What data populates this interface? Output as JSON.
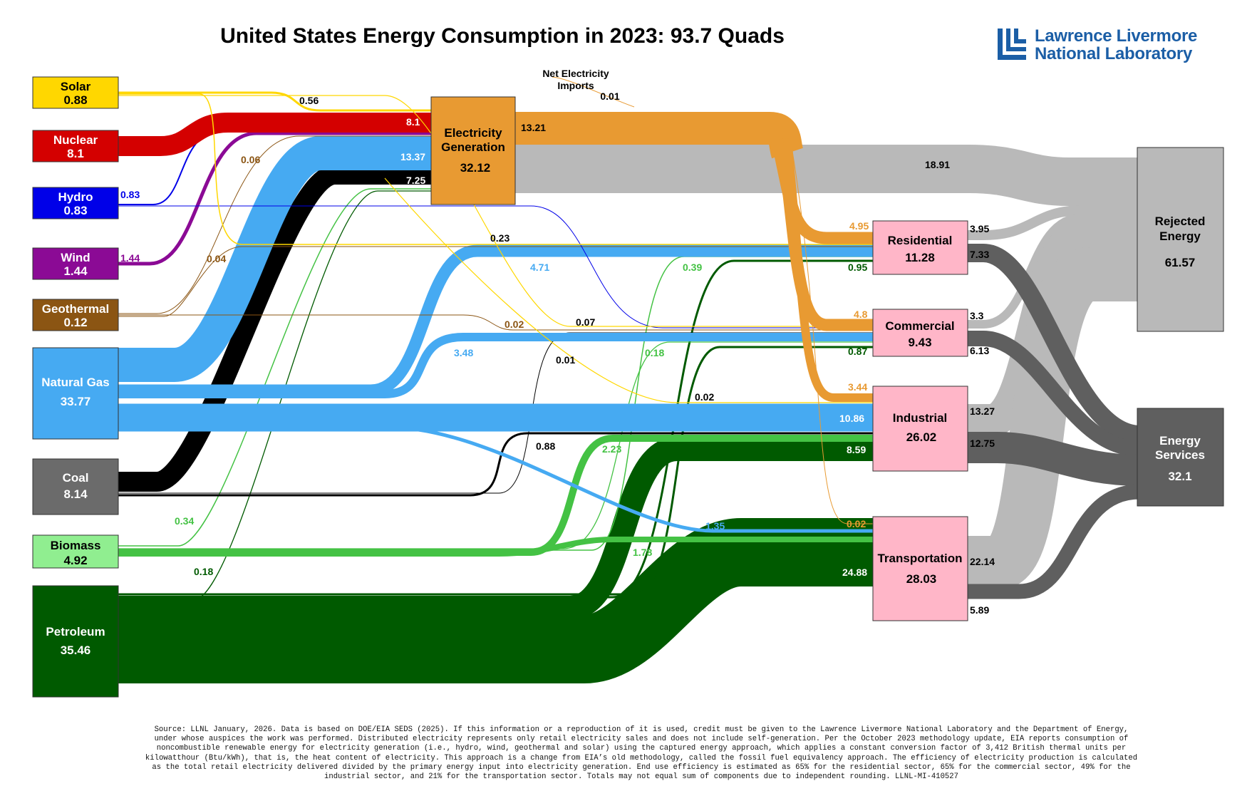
{
  "title": "United States Energy Consumption in 2023: 93.7 Quads",
  "logo": {
    "line1": "Lawrence Livermore",
    "line2": "National Laboratory",
    "color": "#1b5ea6"
  },
  "sources": {
    "solar": {
      "name": "Solar",
      "value": "0.88",
      "color": "#ffd700"
    },
    "nuclear": {
      "name": "Nuclear",
      "value": "8.1",
      "color": "#d40000"
    },
    "hydro": {
      "name": "Hydro",
      "value": "0.83",
      "color": "#0000e8"
    },
    "wind": {
      "name": "Wind",
      "value": "1.44",
      "color": "#8b0a95"
    },
    "geothermal": {
      "name": "Geothermal",
      "value": "0.12",
      "color": "#8b5513"
    },
    "natgas": {
      "name": "Natural Gas",
      "value": "33.77",
      "color": "#46aaf2"
    },
    "coal": {
      "name": "Coal",
      "value": "8.14",
      "color": "#6b6b6b"
    },
    "biomass": {
      "name": "Biomass",
      "value": "4.92",
      "color": "#90ee90"
    },
    "petroleum": {
      "name": "Petroleum",
      "value": "35.46",
      "color": "#005a00"
    }
  },
  "elec": {
    "line1": "Electricity",
    "line2": "Generation",
    "value": "32.12",
    "color": "#e89a32"
  },
  "net_imports": {
    "line1": "Net Electricity",
    "line2": "Imports",
    "value": "0.01"
  },
  "sectors": {
    "residential": {
      "name": "Residential",
      "value": "11.28"
    },
    "commercial": {
      "name": "Commercial",
      "value": "9.43"
    },
    "industrial": {
      "name": "Industrial",
      "value": "26.02"
    },
    "transportation": {
      "name": "Transportation",
      "value": "28.03"
    }
  },
  "sector_color": "#ffb6c8",
  "rejected": {
    "line1": "Rejected",
    "line2": "Energy",
    "value": "61.57",
    "color": "#b9b9b9"
  },
  "services": {
    "line1": "Energy",
    "line2": "Services",
    "value": "32.1",
    "color": "#5f5f5f"
  },
  "flow_labels": {
    "solar_elec": "0.56",
    "nuclear_elec": "8.1",
    "hydro_elec": "0.83",
    "wind_elec": "1.44",
    "geo_elec": "0.06",
    "geo_res": "0.04",
    "gas_elec": "13.37",
    "coal_elec": "7.25",
    "elec_out": "13.21",
    "elec_rejected": "18.91",
    "solar_res": "0.23",
    "gas_res": "4.71",
    "bio_res": "0.39",
    "pet_res": "0.95",
    "elec_res": "4.95",
    "res_rej": "3.95",
    "res_svc": "7.33",
    "geo_com": "0.02",
    "solar_com": "0.07",
    "gas_com": "3.48",
    "bio_com": "0.18",
    "pet_com": "0.87",
    "elec_com": "4.8",
    "com_rej": "3.3",
    "com_svc": "6.13",
    "coal_ind_small": "0.01",
    "solar_ind": "0.02",
    "gas_ind": "10.86",
    "coal_ind": "0.88",
    "bio_ind": "2.23",
    "pet_ind": "8.59",
    "elec_ind": "3.44",
    "ind_rej": "13.27",
    "ind_svc": "12.75",
    "bio_elec": "0.34",
    "pet_elec": "0.18",
    "gas_trans": "1.35",
    "bio_trans": "1.78",
    "pet_trans": "24.88",
    "elec_trans": "0.02",
    "trans_rej": "22.14",
    "trans_svc": "5.89"
  },
  "footnote": "Source: LLNL January, 2026. Data is based on DOE/EIA SEDS (2025). If this information or a reproduction of it is used, credit must be given to the Lawrence Livermore National Laboratory and the Department of Energy, under whose auspices the work was performed. Distributed electricity represents only retail electricity sales and does not include self-generation. Per the October 2023 methodology update, EIA reports consumption of noncombustible renewable energy for electricity generation (i.e., hydro, wind, geothermal and solar) using the captured energy approach, which applies a constant conversion factor of 3,412 British thermal units per kilowatthour (Btu/kWh), that is, the heat content of electricity. This approach is a change from EIA’s old methodology, called the fossil fuel equivalency approach. The efficiency of electricity production is calculated as the total retail electricity delivered divided by the primary energy input into electricity generation. End use efficiency is estimated as 65% for the residential sector, 65% for the commercial sector, 49% for the industrial sector, and 21% for the transportation sector. Totals may not equal sum of components due to independent rounding. LLNL-MI-410527"
}
